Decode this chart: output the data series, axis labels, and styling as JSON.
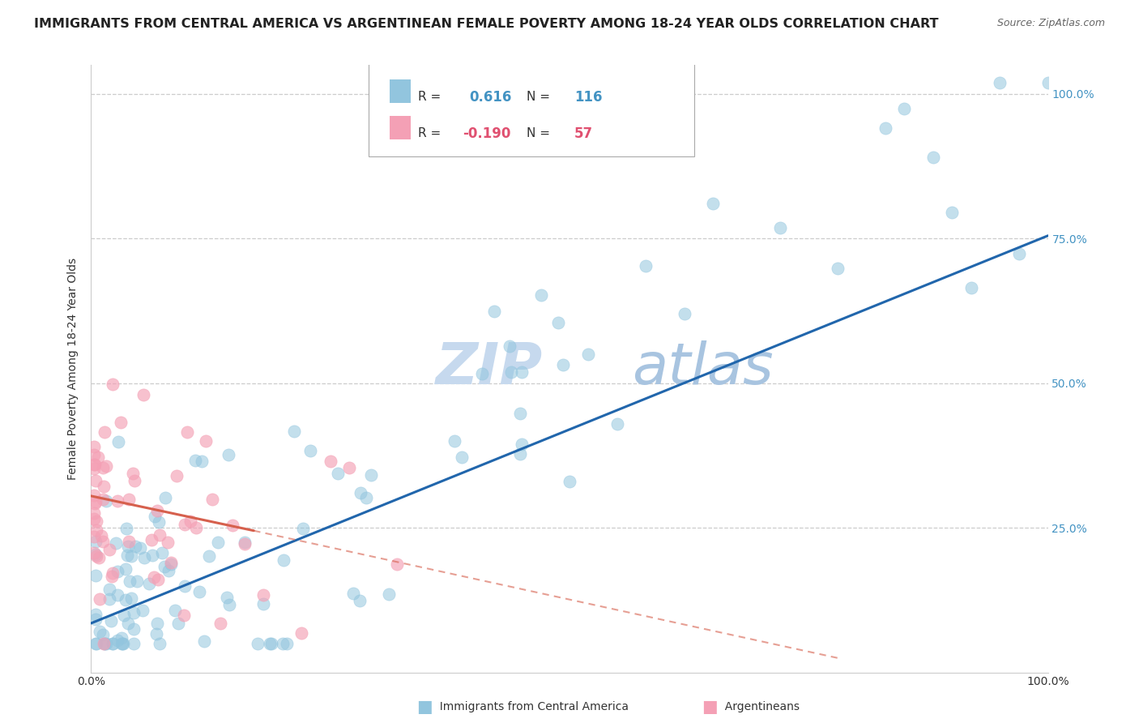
{
  "title": "IMMIGRANTS FROM CENTRAL AMERICA VS ARGENTINEAN FEMALE POVERTY AMONG 18-24 YEAR OLDS CORRELATION CHART",
  "source": "Source: ZipAtlas.com",
  "ylabel": "Female Poverty Among 18-24 Year Olds",
  "r_blue": 0.616,
  "n_blue": 116,
  "r_pink": -0.19,
  "n_pink": 57,
  "blue_color": "#92c5de",
  "pink_color": "#f4a0b5",
  "blue_line_color": "#2166ac",
  "pink_line_color": "#d6604d",
  "blue_tick_color": "#4393c3",
  "watermark_zip": "ZIP",
  "watermark_atlas": "atlas",
  "watermark_color": "#c6d9ee",
  "background_color": "#ffffff",
  "title_fontsize": 11.5,
  "axis_label_fontsize": 10,
  "tick_fontsize": 10,
  "legend_blue_label": "Immigrants from Central America",
  "legend_pink_label": "Argentineans"
}
